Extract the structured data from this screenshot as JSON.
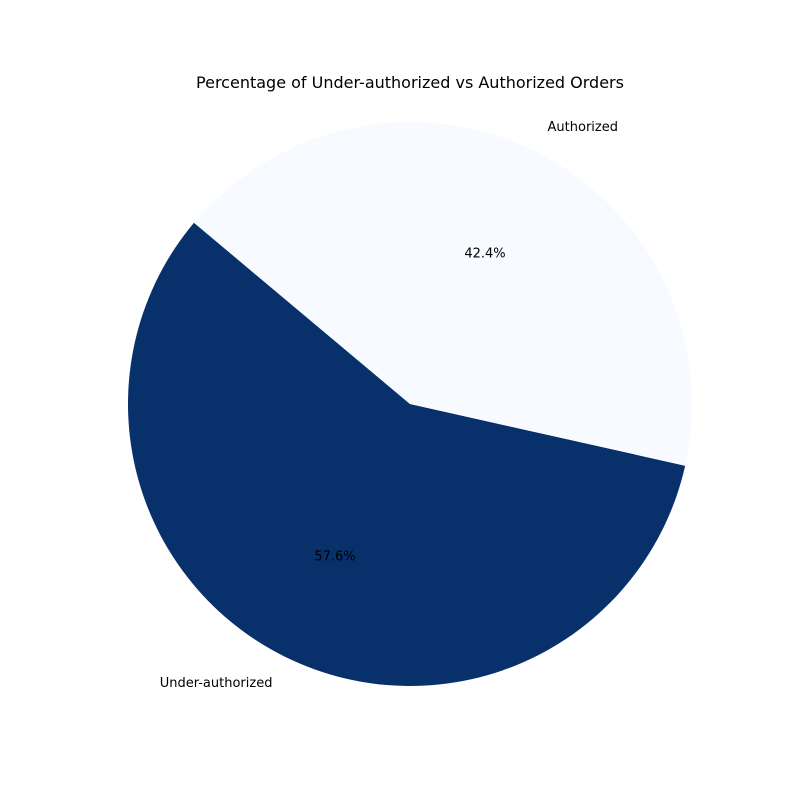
{
  "chart_data": {
    "type": "pie",
    "title": "Percentage of Under-authorized vs Authorized Orders",
    "slices": [
      {
        "label": "Under-authorized",
        "value": 57.6,
        "pct_label": "57.6%",
        "color": "#08306b"
      },
      {
        "label": "Authorized",
        "value": 42.4,
        "pct_label": "42.4%",
        "color": "#f7fbff"
      }
    ],
    "start_angle_deg": 140,
    "direction": "counterclockwise"
  }
}
